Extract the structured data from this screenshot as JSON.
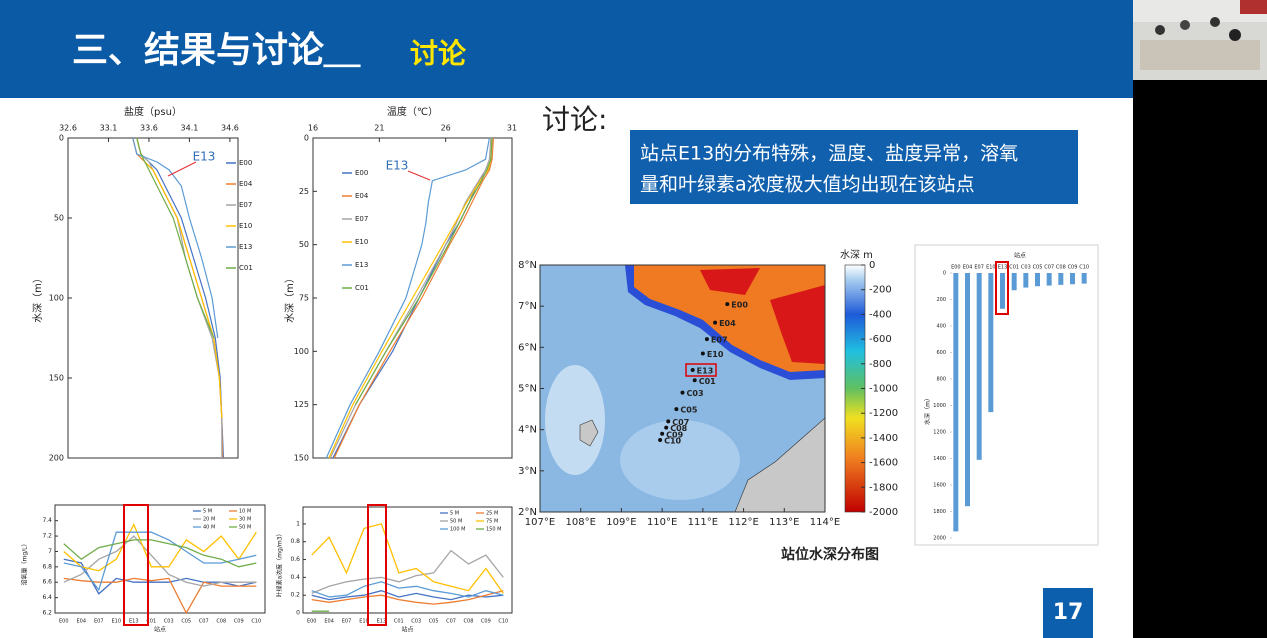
{
  "header": {
    "title": "三、结果与讨论＿",
    "subtitle": "讨论"
  },
  "discussion": {
    "heading": "讨论:",
    "lines": [
      "站点E13的分布特殊，温度、盐度异常，溶氧",
      "量和叶绿素a浓度极大值均出现在该站点"
    ]
  },
  "page_number": "17",
  "chart_data": [
    {
      "type": "profile",
      "xlabel": "盐度（psu）",
      "ylabel": "水深（m）",
      "annotation": "E13",
      "xlim": [
        32.6,
        34.7
      ],
      "xticks": [
        32.6,
        33.1,
        33.6,
        34.1,
        34.6
      ],
      "ylim": [
        0,
        200
      ],
      "yticks": [
        0,
        50,
        100,
        150,
        200
      ],
      "y_inverted": true,
      "depth": [
        0,
        10,
        15,
        20,
        30,
        40,
        50,
        75,
        100,
        125,
        150,
        175,
        200
      ],
      "series": [
        {
          "name": "E00",
          "color": "#4472c4",
          "values": [
            33.45,
            33.5,
            33.6,
            33.7,
            33.8,
            33.9,
            34.0,
            34.15,
            34.3,
            34.42,
            34.48,
            34.5,
            34.52
          ]
        },
        {
          "name": "E04",
          "color": "#ed7d31",
          "values": [
            33.4,
            33.45,
            33.55,
            33.65,
            33.75,
            33.85,
            33.95,
            34.1,
            34.25,
            34.4,
            34.47,
            34.5,
            34.51
          ]
        },
        {
          "name": "E07",
          "color": "#a5a5a5",
          "values": [
            33.45,
            33.5,
            33.6,
            33.65,
            33.75,
            33.85,
            33.95,
            34.05,
            34.2,
            34.38,
            34.47,
            34.5,
            34.5
          ]
        },
        {
          "name": "E10",
          "color": "#ffc000",
          "values": [
            33.45,
            33.5,
            33.55,
            33.65,
            33.75,
            33.85,
            33.95,
            34.1,
            34.25,
            34.4,
            34.47,
            34.5,
            null
          ]
        },
        {
          "name": "E13",
          "color": "#5b9bd5",
          "values": [
            33.4,
            33.45,
            33.7,
            33.85,
            34.0,
            34.05,
            34.1,
            34.25,
            34.38,
            34.45,
            null,
            null,
            null
          ]
        },
        {
          "name": "C01",
          "color": "#70ad47",
          "values": [
            33.45,
            33.5,
            33.55,
            33.6,
            33.7,
            33.8,
            33.9,
            34.05,
            34.2,
            34.4,
            null,
            null,
            null
          ]
        }
      ]
    },
    {
      "type": "profile",
      "xlabel": "温度（℃）",
      "ylabel": "水深（m）",
      "annotation": "E13",
      "xlim": [
        16,
        31
      ],
      "xticks": [
        16,
        21,
        26,
        31
      ],
      "ylim": [
        0,
        150
      ],
      "yticks": [
        0,
        25,
        50,
        75,
        100,
        125,
        150
      ],
      "y_inverted": true,
      "depth": [
        0,
        10,
        15,
        20,
        30,
        40,
        50,
        75,
        100,
        125,
        150
      ],
      "series": [
        {
          "name": "E00",
          "color": "#4472c4",
          "values": [
            29.5,
            29.4,
            29.2,
            28.5,
            27.8,
            27,
            26,
            24,
            22,
            19.5,
            17.5
          ]
        },
        {
          "name": "E04",
          "color": "#ed7d31",
          "values": [
            29.6,
            29.5,
            29.3,
            28.8,
            28,
            27.2,
            26.3,
            24.2,
            21.8,
            19.5,
            17.6
          ]
        },
        {
          "name": "E07",
          "color": "#a5a5a5",
          "values": [
            29.4,
            29.3,
            29,
            28.5,
            27.5,
            26.8,
            26,
            23.8,
            21.5,
            19.2,
            17.3
          ]
        },
        {
          "name": "E10",
          "color": "#ffc000",
          "values": [
            29.5,
            29.4,
            29.2,
            28.6,
            27.6,
            26.7,
            25.8,
            23.5,
            21.2,
            19,
            17.2
          ]
        },
        {
          "name": "E13",
          "color": "#5b9bd5",
          "values": [
            29.3,
            29,
            27.5,
            25,
            24.7,
            24.5,
            24.2,
            23,
            21,
            18.8,
            17
          ]
        },
        {
          "name": "C01",
          "color": "#70ad47",
          "values": [
            29.5,
            29.4,
            29.1,
            28.7,
            27.8,
            27,
            26.2,
            24,
            21.5,
            19.2,
            null
          ]
        }
      ]
    },
    {
      "type": "line",
      "xlabel": "站点",
      "ylabel": "溶氧量（mg/L）",
      "categories": [
        "E00",
        "E04",
        "E07",
        "E10",
        "E13",
        "C01",
        "C03",
        "C05",
        "C07",
        "C08",
        "C09",
        "C10"
      ],
      "ylim": [
        6.2,
        7.5
      ],
      "yticks": [
        6.2,
        6.4,
        6.6,
        6.8,
        7,
        7.2,
        7.4
      ],
      "series": [
        {
          "name": "5 M",
          "color": "#4472c4",
          "values": [
            6.9,
            6.85,
            6.45,
            6.65,
            6.6,
            6.6,
            6.6,
            6.65,
            6.6,
            6.6,
            6.55,
            6.6
          ]
        },
        {
          "name": "10 M",
          "color": "#ed7d31",
          "values": [
            6.65,
            6.62,
            6.6,
            6.6,
            6.65,
            6.62,
            6.65,
            6.2,
            6.6,
            6.55,
            6.55,
            6.55
          ]
        },
        {
          "name": "20 M",
          "color": "#a5a5a5",
          "values": [
            6.6,
            6.7,
            6.9,
            7.0,
            7.2,
            6.95,
            6.7,
            6.6,
            6.55,
            6.6,
            6.6,
            6.6
          ]
        },
        {
          "name": "30 M",
          "color": "#ffc000",
          "values": [
            7.0,
            6.8,
            6.75,
            6.9,
            7.35,
            6.8,
            6.8,
            7.15,
            7.0,
            7.2,
            6.9,
            7.25
          ]
        },
        {
          "name": "40 M",
          "color": "#5b9bd5",
          "values": [
            6.85,
            6.8,
            6.5,
            7.25,
            7.25,
            7.25,
            7.15,
            7.0,
            6.85,
            6.85,
            6.9,
            6.95
          ]
        },
        {
          "name": "50 M",
          "color": "#70ad47",
          "values": [
            7.1,
            6.9,
            7.05,
            7.1,
            7.15,
            7.15,
            7.1,
            7.05,
            6.95,
            6.9,
            6.8,
            6.85
          ]
        }
      ]
    },
    {
      "type": "line",
      "xlabel": "站点",
      "ylabel": "叶绿素a浓度（mg/m3）",
      "categories": [
        "E00",
        "E04",
        "E07",
        "E10",
        "E13",
        "C01",
        "C03",
        "C05",
        "C07",
        "C08",
        "C09",
        "C10"
      ],
      "ylim": [
        0,
        1.1
      ],
      "yticks": [
        0,
        0.2,
        0.4,
        0.6,
        0.8,
        1
      ],
      "series": [
        {
          "name": "5 M",
          "color": "#4472c4",
          "values": [
            0.2,
            0.15,
            0.18,
            0.2,
            0.25,
            0.18,
            0.22,
            0.18,
            0.15,
            0.2,
            0.18,
            0.2
          ]
        },
        {
          "name": "25 M",
          "color": "#ed7d31",
          "values": [
            0.15,
            0.12,
            0.15,
            0.18,
            0.2,
            0.15,
            0.12,
            0.1,
            0.12,
            0.15,
            0.2,
            0.25
          ]
        },
        {
          "name": "50 M",
          "color": "#a5a5a5",
          "values": [
            0.22,
            0.3,
            0.35,
            0.38,
            0.4,
            0.35,
            0.42,
            0.45,
            0.7,
            0.55,
            0.65,
            0.4
          ]
        },
        {
          "name": "75 M",
          "color": "#ffc000",
          "values": [
            0.65,
            0.85,
            0.45,
            0.95,
            1.0,
            0.45,
            0.5,
            0.35,
            0.3,
            0.25,
            0.5,
            0.22
          ]
        },
        {
          "name": "100 M",
          "color": "#5b9bd5",
          "values": [
            0.25,
            0.18,
            0.2,
            0.3,
            0.35,
            0.28,
            0.3,
            0.25,
            0.22,
            0.18,
            0.25,
            0.2
          ]
        },
        {
          "name": "150 M",
          "color": "#70ad47",
          "values": [
            0.02,
            0.02,
            null,
            null,
            null,
            null,
            null,
            null,
            null,
            null,
            null,
            null
          ]
        }
      ]
    },
    {
      "type": "map",
      "caption": "站位水深分布图",
      "colorbar_title": "水深 m",
      "xlim": [
        107,
        114
      ],
      "ylim": [
        2,
        8
      ],
      "xticks": [
        {
          "value": 107,
          "label": "107°E"
        },
        {
          "value": 108,
          "label": "108°E"
        },
        {
          "value": 109,
          "label": "109°E"
        },
        {
          "value": 110,
          "label": "110°E"
        },
        {
          "value": 111,
          "label": "111°E"
        },
        {
          "value": 112,
          "label": "112°E"
        },
        {
          "value": 113,
          "label": "113°E"
        },
        {
          "value": 114,
          "label": "114°E"
        }
      ],
      "yticks": [
        {
          "value": 2,
          "label": "2°N"
        },
        {
          "value": 3,
          "label": "3°N"
        },
        {
          "value": 4,
          "label": "4°N"
        },
        {
          "value": 5,
          "label": "5°N"
        },
        {
          "value": 6,
          "label": "6°N"
        },
        {
          "value": 7,
          "label": "7°N"
        },
        {
          "value": 8,
          "label": "8°N"
        }
      ],
      "colorbar_lim": [
        0,
        -2000
      ],
      "colorbar_ticks": [
        0,
        -200,
        -400,
        -600,
        -800,
        -1000,
        -1200,
        -1400,
        -1600,
        -1800,
        -2000
      ],
      "stations": {
        "names": [
          "E00",
          "E04",
          "E07",
          "E10",
          "E13",
          "C01",
          "C03",
          "C05",
          "C07",
          "C08",
          "C09",
          "C10"
        ],
        "lon": [
          111.6,
          111.3,
          111.1,
          111.0,
          110.75,
          110.8,
          110.5,
          110.35,
          110.15,
          110.1,
          110.0,
          109.95
        ],
        "lat": [
          7.05,
          6.6,
          6.2,
          5.85,
          5.45,
          5.2,
          4.9,
          4.5,
          4.2,
          4.05,
          3.9,
          3.75
        ]
      }
    },
    {
      "type": "bar",
      "title": "站点",
      "ylabel": "水深（m）",
      "y_inverted": true,
      "color": "#5b9bd5",
      "categories": [
        "E00",
        "E04",
        "E07",
        "E10",
        "E13",
        "C01",
        "C03",
        "C05",
        "C07",
        "C08",
        "C09",
        "C10"
      ],
      "values": [
        1950,
        1760,
        1410,
        1050,
        270,
        130,
        110,
        100,
        95,
        90,
        85,
        80
      ],
      "ylim": [
        0,
        2000
      ],
      "yticks": [
        0,
        200,
        400,
        600,
        800,
        1000,
        1200,
        1400,
        1600,
        1800,
        2000
      ]
    }
  ]
}
